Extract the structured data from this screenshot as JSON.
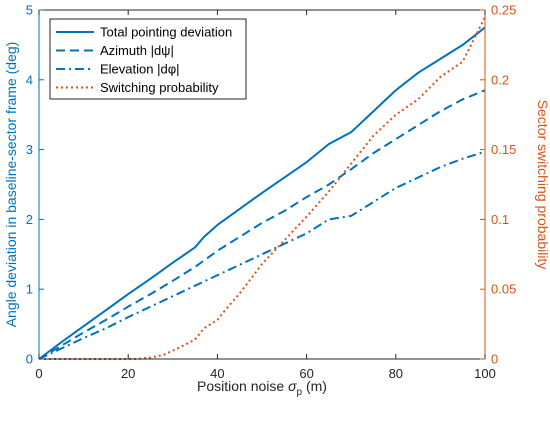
{
  "chart_data": {
    "type": "line",
    "xlabel": "Position noise σ_p (m)",
    "xlabel_parts": {
      "prefix": "Position noise ",
      "symbol": "σ",
      "subscript": "p",
      "suffix": " (m)"
    },
    "ylabel_left": "Angle deviation in baseline-sector frame (deg)",
    "ylabel_right": "Sector switching probability",
    "xlim": [
      0,
      100
    ],
    "ylim_left": [
      0,
      5
    ],
    "ylim_right": [
      0,
      0.25
    ],
    "xticks": [
      0,
      20,
      40,
      60,
      80,
      100
    ],
    "yticks_left": [
      0,
      1,
      2,
      3,
      4,
      5
    ],
    "yticks_right": [
      0,
      0.05,
      0.1,
      0.15,
      0.2,
      0.25
    ],
    "ytick_labels_right": [
      "0",
      "0.05",
      "0.1",
      "0.15",
      "0.2",
      "0.25"
    ],
    "grid": false,
    "legend_position": "top-left",
    "colors": {
      "left_axis": "#0072BD",
      "right_axis": "#D95319"
    },
    "series": [
      {
        "name": "Total pointing deviation",
        "axis": "left",
        "style": "solid",
        "color": "#0072BD",
        "x": [
          0,
          5,
          10,
          15,
          20,
          25,
          30,
          35,
          37,
          40,
          45,
          50,
          55,
          60,
          65,
          70,
          75,
          80,
          85,
          90,
          95,
          100
        ],
        "y": [
          0,
          0.24,
          0.47,
          0.7,
          0.93,
          1.15,
          1.38,
          1.6,
          1.75,
          1.92,
          2.15,
          2.38,
          2.6,
          2.82,
          3.08,
          3.25,
          3.55,
          3.85,
          4.1,
          4.3,
          4.5,
          4.75
        ]
      },
      {
        "name": "Azimuth |dψ|",
        "axis": "left",
        "style": "dashed",
        "color": "#0072BD",
        "x": [
          0,
          5,
          10,
          15,
          20,
          25,
          30,
          35,
          40,
          45,
          50,
          55,
          60,
          65,
          70,
          75,
          80,
          85,
          90,
          95,
          100
        ],
        "y": [
          0,
          0.19,
          0.38,
          0.56,
          0.75,
          0.93,
          1.12,
          1.32,
          1.55,
          1.75,
          1.95,
          2.12,
          2.32,
          2.5,
          2.72,
          2.95,
          3.15,
          3.35,
          3.55,
          3.72,
          3.85
        ]
      },
      {
        "name": "Elevation |dφ|",
        "axis": "left",
        "style": "dashdot",
        "color": "#0072BD",
        "x": [
          0,
          5,
          10,
          15,
          20,
          25,
          30,
          35,
          40,
          45,
          50,
          55,
          60,
          65,
          70,
          75,
          80,
          85,
          90,
          95,
          100
        ],
        "y": [
          0,
          0.15,
          0.3,
          0.44,
          0.6,
          0.75,
          0.9,
          1.05,
          1.2,
          1.35,
          1.5,
          1.65,
          1.8,
          2.0,
          2.05,
          2.25,
          2.45,
          2.6,
          2.75,
          2.87,
          2.97
        ]
      },
      {
        "name": "Switching probability",
        "axis": "right",
        "style": "dotted",
        "color": "#D95319",
        "x": [
          0,
          5,
          10,
          15,
          20,
          22,
          25,
          28,
          30,
          32,
          35,
          37,
          40,
          42,
          45,
          50,
          55,
          60,
          65,
          70,
          75,
          80,
          85,
          90,
          95,
          100
        ],
        "y": [
          0,
          0,
          0,
          0,
          0,
          0,
          0.001,
          0.003,
          0.006,
          0.009,
          0.014,
          0.022,
          0.028,
          0.036,
          0.047,
          0.068,
          0.085,
          0.102,
          0.12,
          0.14,
          0.16,
          0.175,
          0.186,
          0.202,
          0.213,
          0.245
        ]
      }
    ]
  }
}
